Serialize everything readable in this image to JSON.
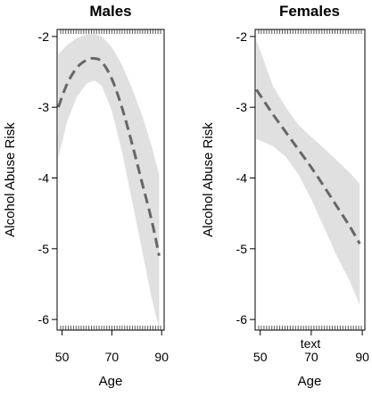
{
  "chart_data": [
    {
      "type": "line",
      "title": "Males",
      "xlabel": "Age",
      "ylabel": "Alcohol Abuse Risk",
      "xlim": [
        48,
        91
      ],
      "ylim": [
        -6.15,
        -1.9
      ],
      "x_ticks": [
        50,
        70,
        90
      ],
      "y_ticks": [
        -2,
        -3,
        -4,
        -5,
        -6
      ],
      "band_color": "#e0e0e0",
      "line_color": "#666666",
      "series": [
        {
          "x": [
            48.5,
            52,
            56,
            60,
            63,
            66,
            70,
            74,
            78,
            82,
            86,
            89
          ],
          "y": [
            -3.0,
            -2.67,
            -2.44,
            -2.33,
            -2.31,
            -2.36,
            -2.6,
            -3.0,
            -3.5,
            -4.05,
            -4.6,
            -5.1
          ],
          "lower": [
            -3.72,
            -3.2,
            -2.85,
            -2.66,
            -2.62,
            -2.7,
            -3.05,
            -3.62,
            -4.3,
            -5.0,
            -5.7,
            -6.12
          ],
          "upper": [
            -2.25,
            -2.12,
            -2.02,
            -1.97,
            -1.96,
            -2.0,
            -2.15,
            -2.4,
            -2.72,
            -3.1,
            -3.55,
            -3.95
          ]
        }
      ]
    },
    {
      "type": "line",
      "title": "Females",
      "xlabel": "Age",
      "ylabel": "Alcohol Abuse Risk",
      "xlim": [
        48,
        91
      ],
      "ylim": [
        -6.15,
        -1.9
      ],
      "x_ticks": [
        50,
        70,
        90
      ],
      "y_ticks": [
        -2,
        -3,
        -4,
        -5,
        -6
      ],
      "annotation": "text",
      "band_color": "#e0e0e0",
      "line_color": "#666666",
      "series": [
        {
          "x": [
            48.5,
            55,
            60,
            65,
            70,
            75,
            80,
            85,
            89
          ],
          "y": [
            -2.75,
            -3.1,
            -3.35,
            -3.6,
            -3.85,
            -4.12,
            -4.4,
            -4.68,
            -4.93
          ],
          "lower": [
            -3.45,
            -3.55,
            -3.7,
            -3.95,
            -4.3,
            -4.7,
            -5.1,
            -5.45,
            -5.8
          ],
          "upper": [
            -2.05,
            -2.7,
            -3.0,
            -3.25,
            -3.42,
            -3.58,
            -3.75,
            -3.92,
            -4.08
          ]
        }
      ]
    }
  ]
}
